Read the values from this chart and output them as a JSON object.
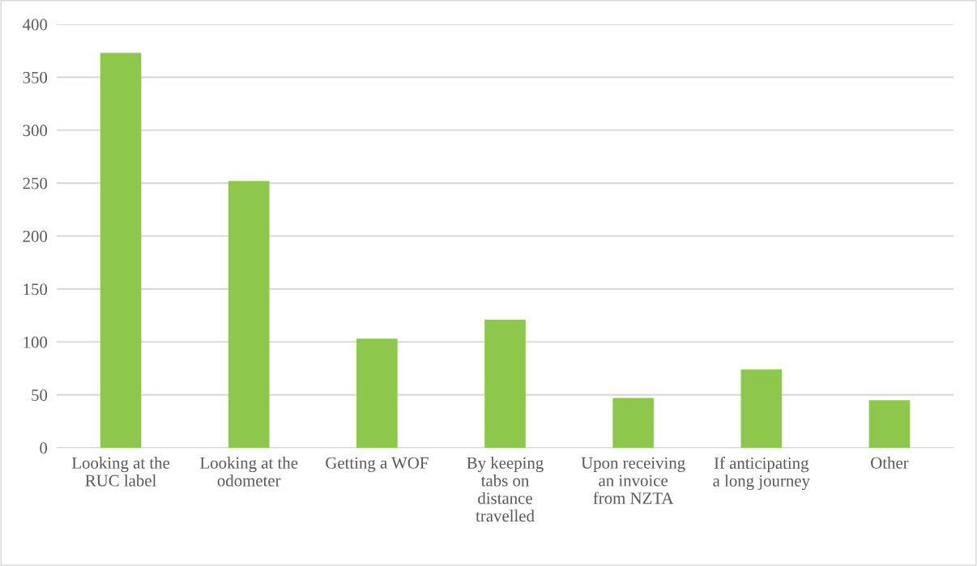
{
  "chart_data": {
    "type": "bar",
    "categories": [
      "Looking at the\nRUC label",
      "Looking at the\nodometer",
      "Getting a WOF",
      "By keeping\ntabs on\ndistance\ntravelled",
      "Upon receiving\nan invoice\nfrom NZTA",
      "If anticipating\na long journey",
      "Other"
    ],
    "values": [
      373,
      252,
      103,
      121,
      47,
      74,
      45
    ],
    "color": "#8dc84c",
    "ylim": [
      0,
      400
    ],
    "yticks": [
      0,
      50,
      100,
      150,
      200,
      250,
      300,
      350,
      400
    ],
    "grid": "y",
    "legend": false
  }
}
